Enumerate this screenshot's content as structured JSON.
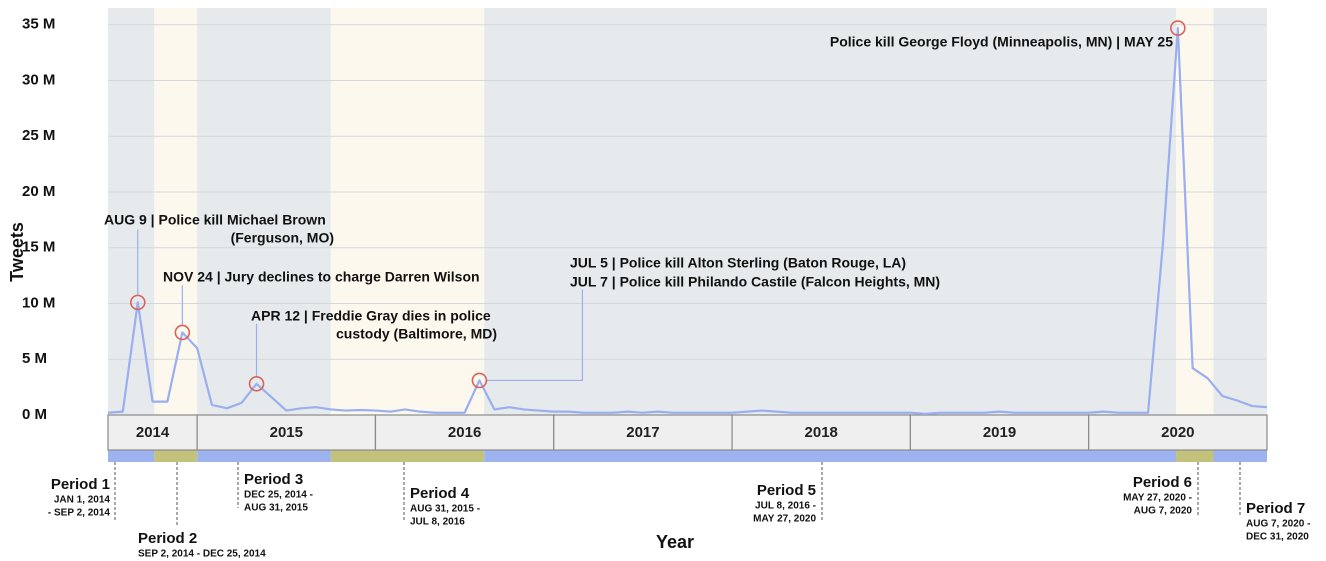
{
  "chart_data": {
    "type": "line",
    "y_label": "Tweets",
    "x_label": "Year",
    "xlim": [
      2014.5,
      2021
    ],
    "ylim": [
      0,
      36.5
    ],
    "yticks": [
      {
        "value": 0,
        "label": "0 M"
      },
      {
        "value": 5,
        "label": "5 M"
      },
      {
        "value": 10,
        "label": "10 M"
      },
      {
        "value": 15,
        "label": "15 M"
      },
      {
        "value": 20,
        "label": "20 M"
      },
      {
        "value": 25,
        "label": "25 M"
      },
      {
        "value": 30,
        "label": "30 M"
      },
      {
        "value": 35,
        "label": "35 M"
      }
    ],
    "grid": true,
    "year_labels": [
      2014,
      2015,
      2016,
      2017,
      2018,
      2019,
      2020
    ],
    "series": [
      {
        "name": "Tweets",
        "color": "#9aaef0",
        "x": [
          2014.5,
          2014.583,
          2014.667,
          2014.75,
          2014.833,
          2014.917,
          2015,
          2015.083,
          2015.167,
          2015.25,
          2015.333,
          2015.417,
          2015.5,
          2015.583,
          2015.667,
          2015.75,
          2015.833,
          2015.917,
          2016,
          2016.083,
          2016.167,
          2016.25,
          2016.333,
          2016.417,
          2016.5,
          2016.583,
          2016.667,
          2016.75,
          2016.833,
          2016.917,
          2017,
          2017.083,
          2017.167,
          2017.25,
          2017.333,
          2017.417,
          2017.5,
          2017.583,
          2017.667,
          2017.75,
          2017.833,
          2017.917,
          2018,
          2018.083,
          2018.167,
          2018.25,
          2018.333,
          2018.417,
          2018.5,
          2018.583,
          2018.667,
          2018.75,
          2018.833,
          2018.917,
          2019,
          2019.083,
          2019.167,
          2019.25,
          2019.333,
          2019.417,
          2019.5,
          2019.583,
          2019.667,
          2019.75,
          2019.833,
          2019.917,
          2020,
          2020.083,
          2020.167,
          2020.25,
          2020.333,
          2020.417,
          2020.5,
          2020.583,
          2020.667,
          2020.75,
          2020.833,
          2020.917,
          2021
        ],
        "values": [
          0.2,
          0.3,
          10.1,
          1.2,
          1.2,
          7.4,
          6.0,
          0.9,
          0.6,
          1.1,
          2.8,
          1.6,
          0.4,
          0.6,
          0.7,
          0.5,
          0.4,
          0.45,
          0.4,
          0.3,
          0.5,
          0.3,
          0.2,
          0.2,
          0.2,
          3.1,
          0.5,
          0.7,
          0.5,
          0.4,
          0.3,
          0.3,
          0.2,
          0.2,
          0.2,
          0.3,
          0.2,
          0.3,
          0.2,
          0.2,
          0.2,
          0.2,
          0.2,
          0.3,
          0.4,
          0.3,
          0.2,
          0.2,
          0.2,
          0.2,
          0.2,
          0.2,
          0.2,
          0.2,
          0.2,
          0.1,
          0.2,
          0.2,
          0.2,
          0.2,
          0.3,
          0.2,
          0.2,
          0.2,
          0.2,
          0.2,
          0.2,
          0.3,
          0.2,
          0.2,
          0.2,
          15.5,
          34.7,
          4.2,
          3.3,
          1.7,
          1.3,
          0.8,
          0.7
        ]
      }
    ],
    "annotations": [
      {
        "lines": [
          "AUG 9 | Police kill Michael Brown",
          "(Ferguson, MO)"
        ]
      },
      {
        "lines": [
          "NOV 24 | Jury declines to charge Darren Wilson"
        ]
      },
      {
        "lines": [
          "APR 12 | Freddie Gray dies in police",
          "custody (Baltimore, MD)"
        ]
      },
      {
        "lines": [
          "JUL 5 | Police kill Alton Sterling (Baton Rouge, LA)",
          "JUL 7 | Police kill Philando Castile (Falcon Heights, MN)"
        ]
      },
      {
        "lines": [
          "Police kill George Floyd (Minneapolis, MN) | MAY 25"
        ]
      }
    ],
    "periods": [
      {
        "name": "Period 1",
        "dates": [
          "JAN 1, 2014",
          "- SEP 2, 2014"
        ],
        "start": 2014.5,
        "end": 2014.76,
        "band_color": "#e6eaec",
        "bar_color": "#9db3ef"
      },
      {
        "name": "Period 2",
        "dates": [
          "SEP 2, 2014 - DEC 25, 2014"
        ],
        "start": 2014.76,
        "end": 2015,
        "band_color": "#fdf8ed",
        "bar_color": "#c3c27a"
      },
      {
        "name": "Period 3",
        "dates": [
          "DEC 25, 2014 -",
          "AUG 31, 2015"
        ],
        "start": 2015,
        "end": 2015.75,
        "band_color": "#e6eaec",
        "bar_color": "#9db3ef"
      },
      {
        "name": "Period 4",
        "dates": [
          "AUG 31, 2015 -",
          "JUL 8, 2016"
        ],
        "start": 2015.75,
        "end": 2016.61,
        "band_color": "#fdf8ed",
        "bar_color": "#c3c27a"
      },
      {
        "name": "Period 5",
        "dates": [
          "JUL 8, 2016 -",
          "MAY 27, 2020"
        ],
        "start": 2016.61,
        "end": 2020.49,
        "band_color": "#e6eaec",
        "bar_color": "#9db3ef"
      },
      {
        "name": "Period 6",
        "dates": [
          "MAY 27, 2020 -",
          "AUG 7, 2020"
        ],
        "start": 2020.49,
        "end": 2020.7,
        "band_color": "#fdf8ed",
        "bar_color": "#c3c27a"
      },
      {
        "name": "Period 7",
        "dates": [
          "AUG 7, 2020 -",
          "DEC 31, 2020"
        ],
        "start": 2020.7,
        "end": 2021,
        "band_color": "#e6eaec",
        "bar_color": "#9db3ef"
      }
    ]
  }
}
